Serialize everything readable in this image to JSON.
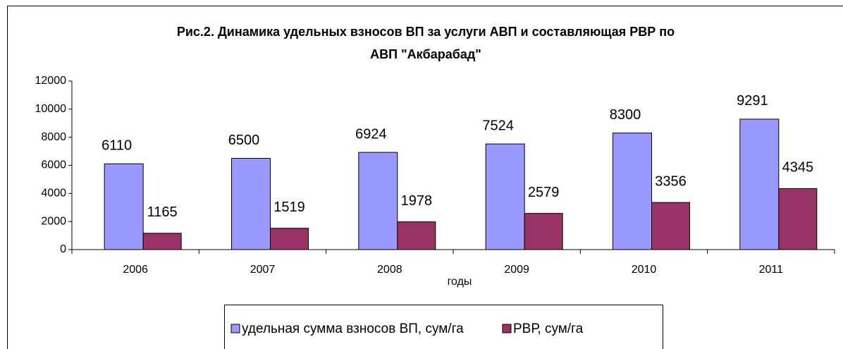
{
  "chart_data": {
    "type": "bar",
    "title": "Рис.2.  Динамика удельных взносов ВП за услуги АВП и составляющая РВР по АВП \"Акбарабад\"",
    "title_lines": [
      "Рис.2.  Динамика удельных взносов ВП за услуги АВП и составляющая РВР по",
      "АВП \"Акбарабад\""
    ],
    "x_label": "годы",
    "categories": [
      "2006",
      "2007",
      "2008",
      "2009",
      "2010",
      "2011"
    ],
    "series": [
      {
        "name": "удельная сумма взносов ВП, сум/га",
        "color": "#9999ff",
        "values": [
          6110,
          6500,
          6924,
          7524,
          8300,
          9291
        ]
      },
      {
        "name": "РВР, сум/га",
        "color": "#993366",
        "values": [
          1165,
          1519,
          1978,
          2579,
          3356,
          4345
        ]
      }
    ],
    "ylim": [
      0,
      12000
    ],
    "yticks": [
      0,
      2000,
      4000,
      6000,
      8000,
      10000,
      12000
    ],
    "grid": false,
    "legend": "bottom"
  }
}
